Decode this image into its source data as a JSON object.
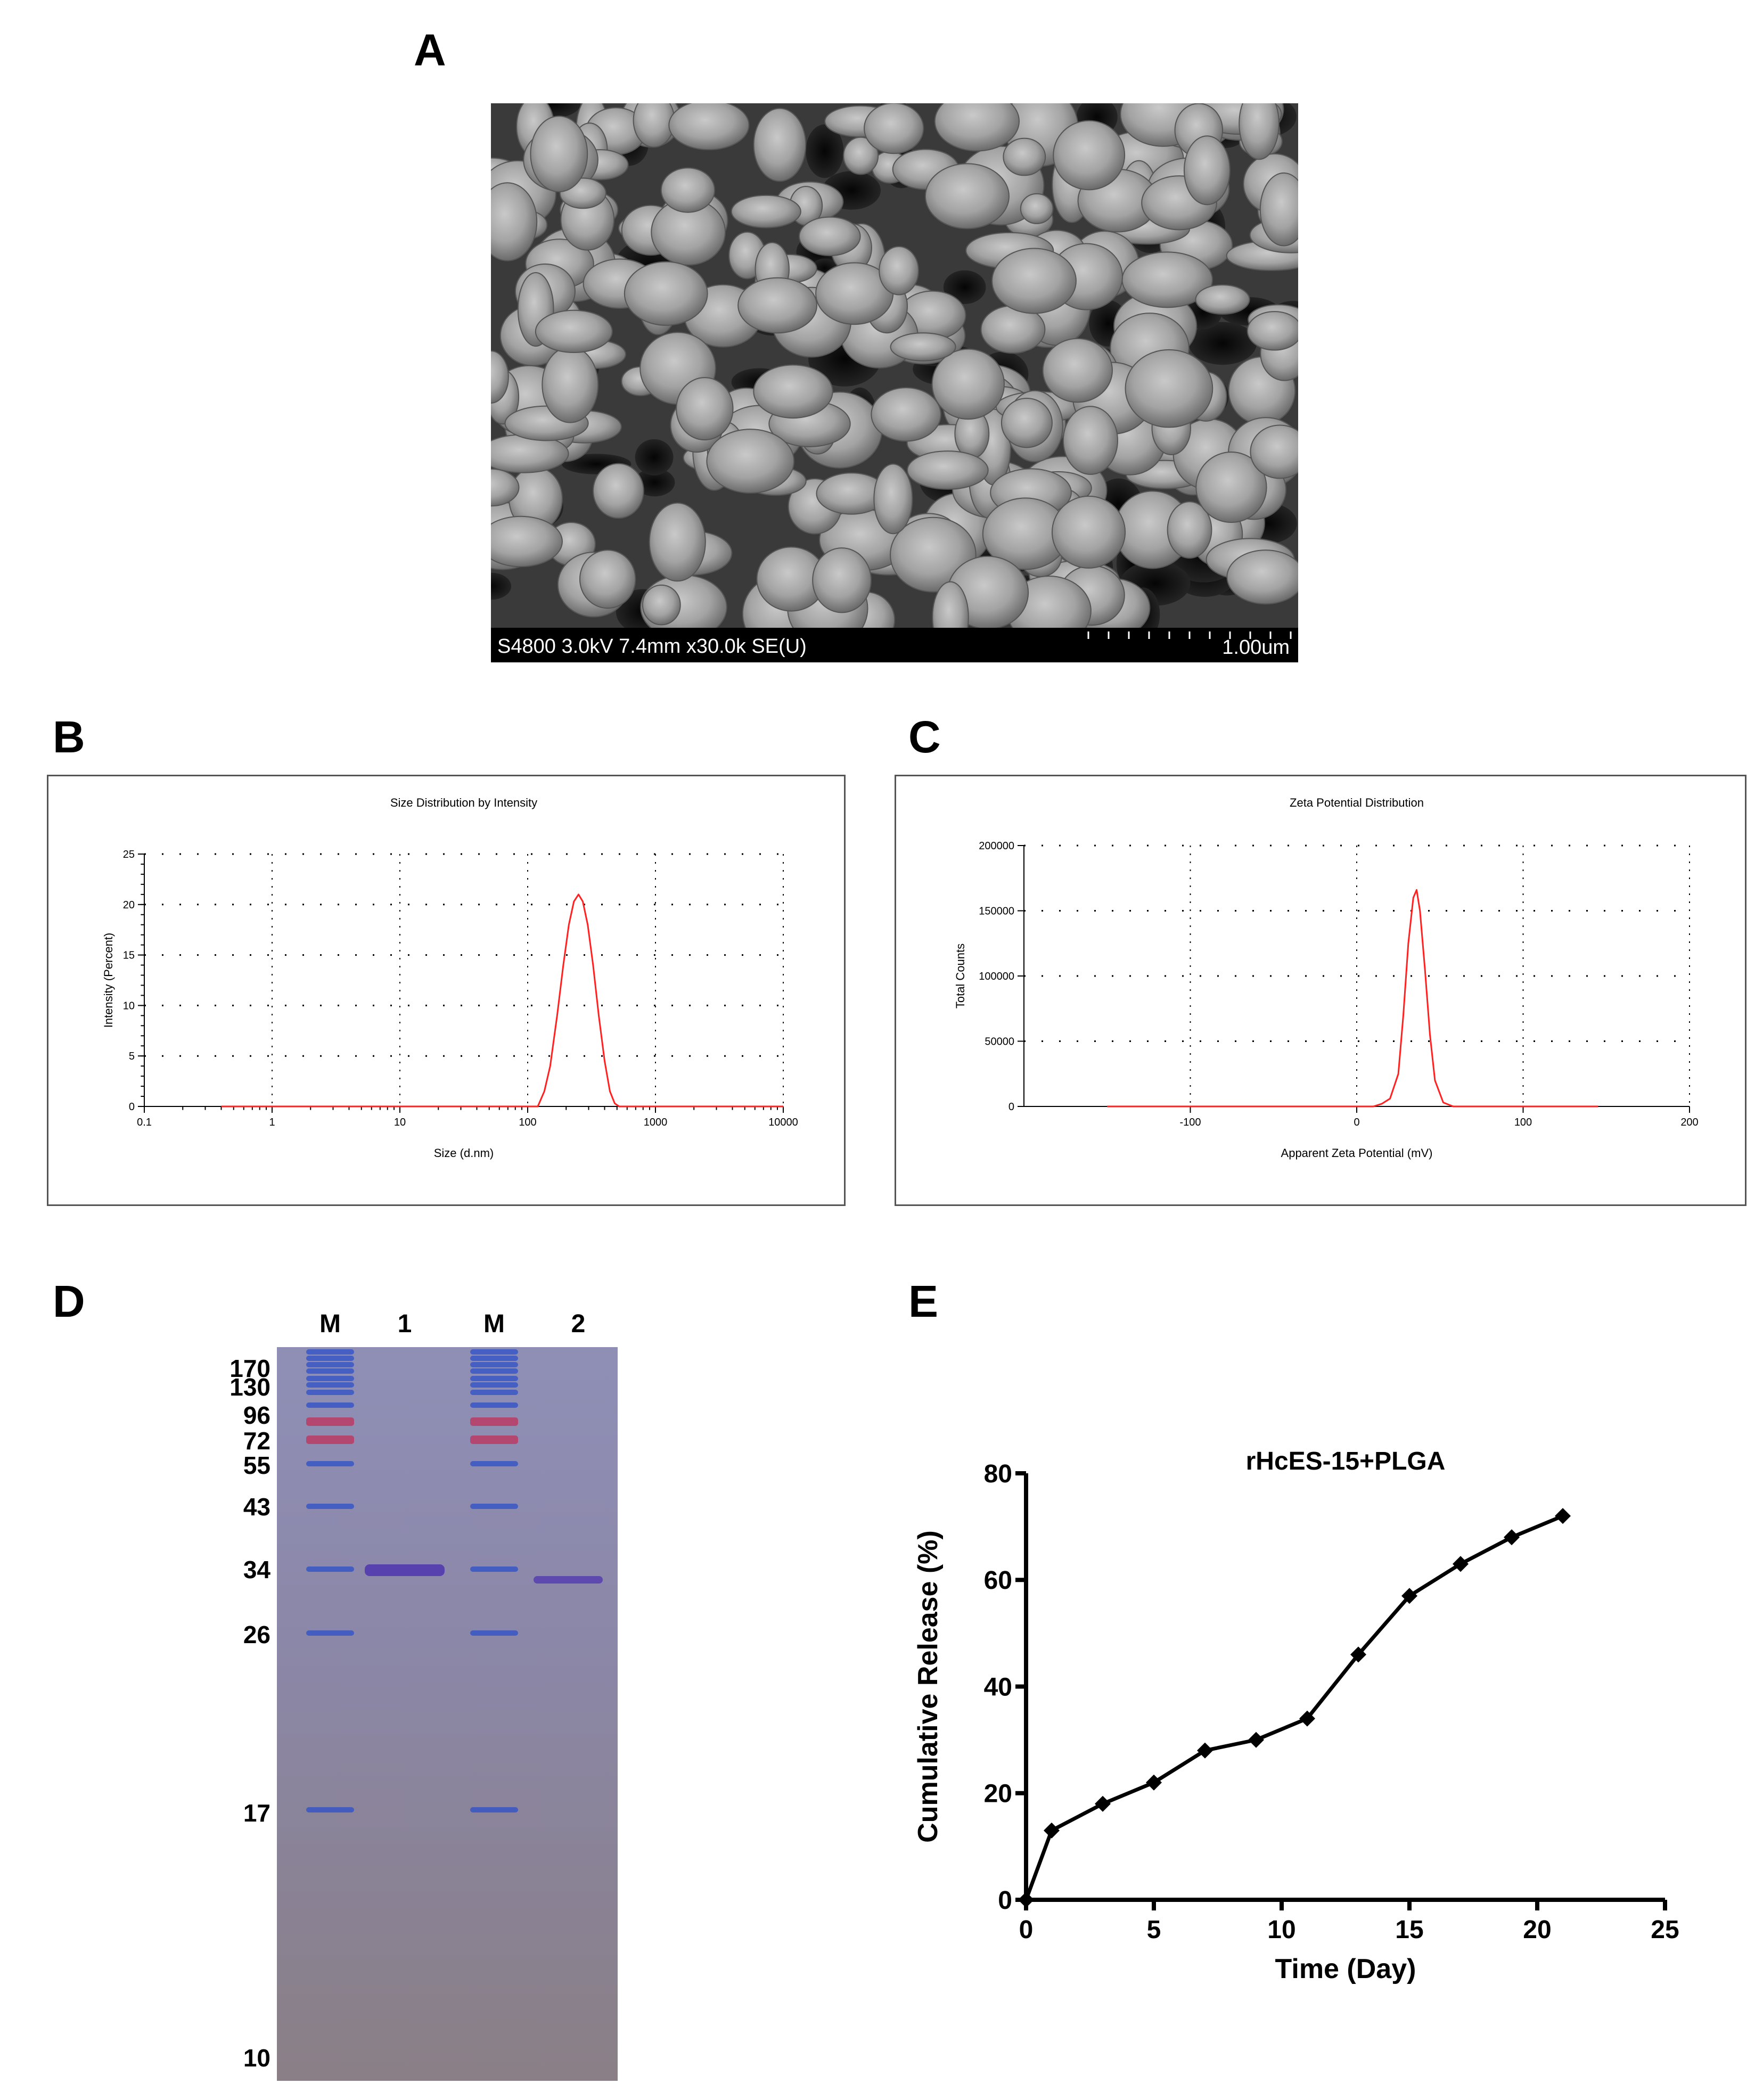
{
  "panels": {
    "A": {
      "letter": "A",
      "sem_caption": "S4800 3.0kV 7.4mm x30.0k SE(U)",
      "scale_label": "1.00um"
    },
    "B": {
      "letter": "B"
    },
    "C": {
      "letter": "C"
    },
    "D": {
      "letter": "D",
      "lane_labels": [
        "M",
        "1",
        "M",
        "2"
      ],
      "marker_labels": [
        "170",
        "130",
        "96",
        "72",
        "55",
        "43",
        "34",
        "26",
        "17",
        "10"
      ],
      "marker_kda": [
        170,
        130,
        96,
        72,
        55,
        43,
        34,
        26,
        17,
        10
      ]
    },
    "E": {
      "letter": "E"
    }
  },
  "chart_data": [
    {
      "panel": "B",
      "type": "line",
      "title": "Size Distribution by Intensity",
      "xlabel": "Size (d.nm)",
      "ylabel": "Intensity (Percent)",
      "xscale": "log",
      "xlim": [
        0.1,
        10000
      ],
      "ylim": [
        0,
        25
      ],
      "xticks": [
        "0.1",
        "1",
        "10",
        "100",
        "1000",
        "10000"
      ],
      "yticks": [
        "0",
        "5",
        "10",
        "15",
        "20",
        "25"
      ],
      "grid": true,
      "series": [
        {
          "color": "#ff2020",
          "x": [
            0.4,
            100,
            120,
            135,
            150,
            170,
            190,
            210,
            230,
            250,
            270,
            295,
            325,
            360,
            400,
            440,
            480,
            520,
            10000
          ],
          "y": [
            0,
            0,
            0,
            1.5,
            4,
            9,
            14,
            18,
            20.3,
            21,
            20.3,
            18,
            14,
            9,
            4.5,
            1.5,
            0.3,
            0,
            0
          ]
        }
      ]
    },
    {
      "panel": "C",
      "type": "line",
      "title": "Zeta Potential Distribution",
      "xlabel": "Apparent Zeta Potential (mV)",
      "ylabel": "Total Counts",
      "xlim": [
        -200,
        200
      ],
      "ylim": [
        0,
        200000
      ],
      "xticks": [
        "-100",
        "0",
        "100",
        "200"
      ],
      "yticks": [
        "0",
        "50000",
        "100000",
        "150000",
        "200000"
      ],
      "grid": true,
      "series": [
        {
          "color": "#ff2020",
          "x": [
            -150,
            10,
            15,
            20,
            25,
            28,
            31,
            34,
            36,
            38,
            41,
            44,
            47,
            52,
            58,
            145
          ],
          "y": [
            0,
            0,
            2000,
            6000,
            25000,
            70000,
            125000,
            160000,
            166000,
            150000,
            105000,
            55000,
            20000,
            3000,
            0,
            0
          ]
        }
      ]
    },
    {
      "panel": "E",
      "type": "line",
      "title": "rHcES-15+PLGA",
      "xlabel": "Time (Day)",
      "ylabel": "Cumulative Release (%)",
      "xlim": [
        0,
        25
      ],
      "ylim": [
        0,
        80
      ],
      "xticks": [
        "0",
        "5",
        "10",
        "15",
        "20",
        "25"
      ],
      "yticks": [
        "0",
        "20",
        "40",
        "60",
        "80"
      ],
      "grid": false,
      "series": [
        {
          "color": "#000000",
          "marker": "diamond",
          "x": [
            0,
            1,
            3,
            5,
            7,
            9,
            11,
            13,
            15,
            17,
            19,
            21
          ],
          "y": [
            0,
            13,
            18,
            22,
            28,
            30,
            34,
            46,
            57,
            63,
            68,
            72
          ]
        }
      ]
    }
  ]
}
